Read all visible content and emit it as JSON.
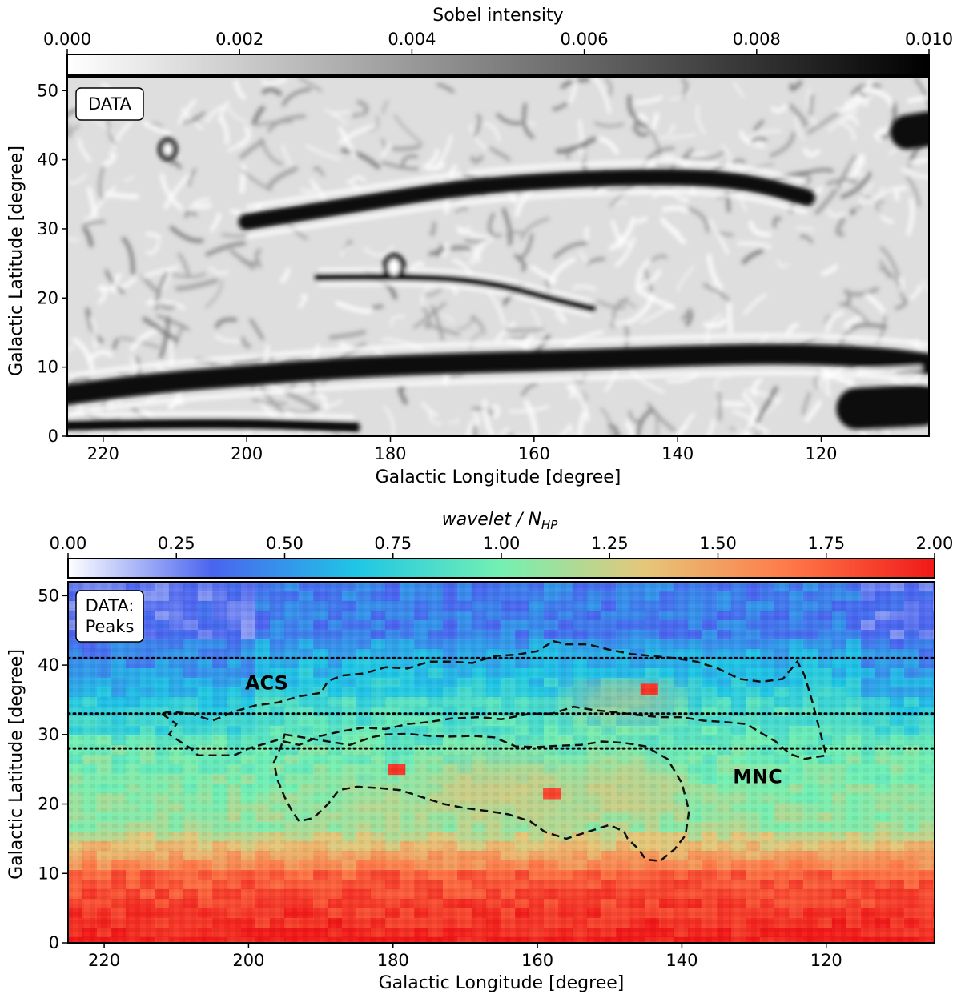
{
  "chart_data": [
    {
      "type": "heatmap",
      "panel_label": "DATA",
      "colorbar": {
        "title": "Sobel intensity",
        "range": [
          0.0,
          0.01
        ],
        "ticks": [
          "0.000",
          "0.002",
          "0.004",
          "0.006",
          "0.008",
          "0.010"
        ],
        "tick_values": [
          0.0,
          0.002,
          0.004,
          0.006,
          0.008,
          0.01
        ],
        "colormap": [
          "#ffffff",
          "#000000"
        ]
      },
      "xlabel": "Galactic Longitude [degree]",
      "ylabel": "Galactic Latitude [degree]",
      "xlim": [
        225,
        105
      ],
      "ylim": [
        0,
        52
      ],
      "xticks": [
        220,
        200,
        180,
        160,
        140,
        120
      ],
      "yticks": [
        0,
        10,
        20,
        30,
        40,
        50
      ],
      "dark_filaments": [
        {
          "points": [
            [
              225,
              6
            ],
            [
              215,
              7.5
            ],
            [
              200,
              8.8
            ],
            [
              185,
              10
            ],
            [
              170,
              10.6
            ],
            [
              155,
              11
            ],
            [
              140,
              11.6
            ],
            [
              125,
              12
            ],
            [
              112,
              11.4
            ],
            [
              105,
              10.5
            ]
          ],
          "width_deg": 3.0
        },
        {
          "points": [
            [
              200,
              31
            ],
            [
              185,
              33.5
            ],
            [
              170,
              36
            ],
            [
              155,
              37.2
            ],
            [
              140,
              37.6
            ],
            [
              130,
              36.8
            ],
            [
              122,
              34.5
            ]
          ],
          "width_deg": 2.4
        },
        {
          "points": [
            [
              190,
              23
            ],
            [
              175,
              23.2
            ],
            [
              165,
              22
            ],
            [
              158,
              20
            ],
            [
              152,
              18.5
            ]
          ],
          "width_deg": 1.1
        },
        {
          "points": [
            [
              225,
              1.5
            ],
            [
              205,
              2
            ],
            [
              185,
              1.3
            ]
          ],
          "width_deg": 1.6
        },
        {
          "points": [
            [
              115,
              4
            ],
            [
              106,
              4.5
            ]
          ],
          "width_deg": 6.0
        },
        {
          "points": [
            [
              108,
              44
            ],
            [
              105,
              44.5
            ]
          ],
          "width_deg": 5.0
        }
      ],
      "dark_rings": [
        {
          "lon": 179.5,
          "lat": 24.5,
          "r_deg": 1.2
        },
        {
          "lon": 211,
          "lat": 41.5,
          "r_deg": 1.0
        }
      ]
    },
    {
      "type": "heatmap",
      "panel_label": "DATA:\nPeaks",
      "colorbar": {
        "title": "wavelet / N_HP",
        "range": [
          0.0,
          2.0
        ],
        "ticks": [
          "0.00",
          "0.25",
          "0.50",
          "0.75",
          "1.00",
          "1.25",
          "1.50",
          "1.75",
          "2.00"
        ],
        "tick_values": [
          0.0,
          0.25,
          0.5,
          0.75,
          1.0,
          1.25,
          1.5,
          1.75,
          2.0
        ],
        "colormap": [
          "#ffffff",
          "#4a64ef",
          "#1fc6e6",
          "#74f0b2",
          "#e6c679",
          "#ff7848",
          "#f01818"
        ]
      },
      "xlabel": "Galactic Longitude [degree]",
      "ylabel": "Galactic Latitude [degree]",
      "xlim": [
        225,
        105
      ],
      "ylim": [
        0,
        52
      ],
      "xticks": [
        220,
        200,
        180,
        160,
        140,
        120
      ],
      "yticks": [
        0,
        10,
        20,
        30,
        40,
        50
      ],
      "horizontal_dotted_lines": [
        41,
        33,
        28
      ],
      "annotations": [
        {
          "text": "ACS",
          "lon": 197.5,
          "lat": 36.5
        },
        {
          "text": "MNC",
          "lon": 129.5,
          "lat": 23.0
        }
      ],
      "contours": [
        [
          [
            212,
            33
          ],
          [
            210,
            31.5
          ],
          [
            211,
            30
          ],
          [
            208,
            28
          ],
          [
            207,
            27
          ],
          [
            202,
            27
          ],
          [
            200,
            28
          ],
          [
            196,
            29.2
          ],
          [
            193,
            28.5
          ],
          [
            190,
            29.8
          ],
          [
            187,
            30.5
          ],
          [
            184,
            31
          ],
          [
            181,
            30.8
          ],
          [
            178,
            31.5
          ],
          [
            175,
            31.8
          ],
          [
            172,
            32.3
          ],
          [
            168,
            32.5
          ],
          [
            165,
            32.2
          ],
          [
            161,
            33
          ],
          [
            158,
            33
          ],
          [
            155,
            34
          ],
          [
            152,
            33.5
          ],
          [
            149,
            33.2
          ],
          [
            146,
            32.8
          ],
          [
            143,
            32.5
          ],
          [
            140,
            32.5
          ],
          [
            137,
            32
          ],
          [
            134,
            31.8
          ],
          [
            131,
            31.5
          ],
          [
            129,
            30.2
          ],
          [
            127,
            29
          ],
          [
            125,
            27.2
          ],
          [
            123,
            26.5
          ],
          [
            120,
            27
          ],
          [
            121,
            31
          ],
          [
            122,
            35
          ],
          [
            123,
            38.5
          ],
          [
            124,
            40.5
          ],
          [
            126,
            38
          ],
          [
            129,
            37.6
          ],
          [
            132,
            38
          ],
          [
            135,
            39.5
          ],
          [
            138,
            40.5
          ],
          [
            141,
            41
          ],
          [
            144,
            41.3
          ],
          [
            147,
            41.6
          ],
          [
            150,
            42.2
          ],
          [
            153,
            43
          ],
          [
            156,
            43
          ],
          [
            158,
            43.5
          ],
          [
            158.5,
            43
          ],
          [
            160,
            42
          ],
          [
            163,
            41.5
          ],
          [
            166,
            41.3
          ],
          [
            169,
            40.3
          ],
          [
            172,
            40.5
          ],
          [
            175,
            40.5
          ],
          [
            178,
            39.5
          ],
          [
            181,
            39.7
          ],
          [
            184,
            38.8
          ],
          [
            187,
            38.5
          ],
          [
            189,
            37.7
          ],
          [
            190,
            36
          ],
          [
            193,
            35.5
          ],
          [
            196,
            34.6
          ],
          [
            199,
            34.2
          ],
          [
            202,
            33.3
          ],
          [
            205,
            32
          ],
          [
            208,
            33
          ],
          [
            211,
            33.3
          ],
          [
            212,
            33
          ]
        ],
        [
          [
            195,
            30
          ],
          [
            192,
            29.5
          ],
          [
            189,
            29
          ],
          [
            186,
            28.5
          ],
          [
            183,
            29.6
          ],
          [
            181,
            30
          ],
          [
            178,
            30.1
          ],
          [
            175,
            29.8
          ],
          [
            172,
            29.7
          ],
          [
            169,
            29.8
          ],
          [
            166,
            29.6
          ],
          [
            163,
            28.3
          ],
          [
            160,
            28.2
          ],
          [
            157,
            28.4
          ],
          [
            154,
            28.5
          ],
          [
            151,
            29
          ],
          [
            148,
            28.8
          ],
          [
            145,
            28.3
          ],
          [
            142,
            26.5
          ],
          [
            140,
            23
          ],
          [
            139,
            19
          ],
          [
            139.5,
            15.5
          ],
          [
            141,
            13.5
          ],
          [
            143,
            11.8
          ],
          [
            145,
            12
          ],
          [
            146,
            13.5
          ],
          [
            147.5,
            15
          ],
          [
            148,
            16
          ],
          [
            150,
            17
          ],
          [
            153,
            16
          ],
          [
            156,
            15
          ],
          [
            159,
            16
          ],
          [
            161,
            17.5
          ],
          [
            164,
            18.5
          ],
          [
            167,
            19
          ],
          [
            170,
            19.4
          ],
          [
            173,
            20
          ],
          [
            176,
            21
          ],
          [
            179,
            22
          ],
          [
            182,
            22.3
          ],
          [
            185,
            22.5
          ],
          [
            187.5,
            22
          ],
          [
            189,
            20
          ],
          [
            191,
            18
          ],
          [
            193,
            17.5
          ],
          [
            194,
            19
          ],
          [
            195,
            21
          ],
          [
            196,
            23.5
          ],
          [
            196.5,
            26
          ],
          [
            195.5,
            28.3
          ],
          [
            195,
            30
          ]
        ]
      ],
      "hot_spots": [
        {
          "lon": 179.5,
          "lat": 25,
          "value": 1.9
        },
        {
          "lon": 158,
          "lat": 21.5,
          "value": 1.85
        },
        {
          "lon": 144.5,
          "lat": 36.5,
          "value": 1.9
        }
      ]
    }
  ]
}
